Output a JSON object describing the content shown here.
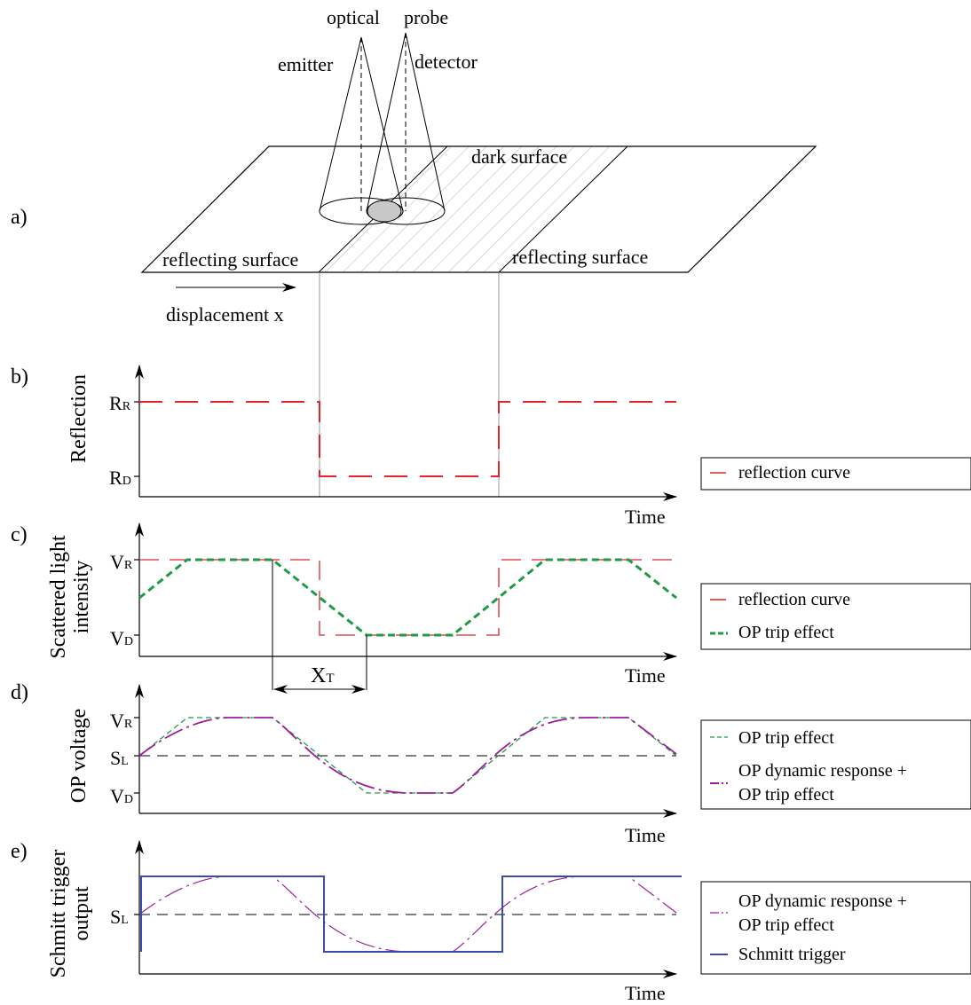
{
  "colors": {
    "reflection": "#e0262b",
    "op_trip": "#1f9a48",
    "op_dynamic": "#9b1f9b",
    "schmitt": "#3a4ca8",
    "hatch": "#b5b5b5",
    "spot_fill": "#c8c8c8"
  },
  "panel_a": {
    "panel_label": "a)",
    "probe_word1": "optical",
    "probe_word2": "probe",
    "emitter": "emitter",
    "detector": "detector",
    "dark_surface": "dark surface",
    "reflecting_left": "reflecting surface",
    "reflecting_right": "reflecting  surface",
    "displacement": "displacement x"
  },
  "panel_b": {
    "panel_label": "b)",
    "ylabel": "Reflection",
    "tick_high": "R",
    "tick_high_sub": "R",
    "tick_low": "R",
    "tick_low_sub": "D",
    "xlabel": "Time",
    "legend": [
      "reflection curve"
    ]
  },
  "panel_c": {
    "panel_label": "c)",
    "ylabel_line1": "Scattered light",
    "ylabel_line2": "intensity",
    "tick_high": "V",
    "tick_high_sub": "R",
    "tick_low": "V",
    "tick_low_sub": "D",
    "xt": "X",
    "xt_sub": "T",
    "xlabel": "Time",
    "legend": [
      "reflection curve",
      "OP trip effect"
    ]
  },
  "panel_d": {
    "panel_label": "d)",
    "ylabel": "OP voltage",
    "tick_high": "V",
    "tick_high_sub": "R",
    "tick_mid": "S",
    "tick_mid_sub": "L",
    "tick_low": "V",
    "tick_low_sub": "D",
    "xlabel": "Time",
    "legend": [
      "OP trip effect",
      "OP dynamic response +",
      "OP trip effect"
    ]
  },
  "panel_e": {
    "panel_label": "e)",
    "ylabel_line1": "Schmitt trigger",
    "ylabel_line2": "output",
    "tick_mid": "S",
    "tick_mid_sub": "L",
    "xlabel": "Time",
    "legend": [
      "OP dynamic response +",
      "OP trip effect",
      "Schmitt trigger"
    ]
  }
}
